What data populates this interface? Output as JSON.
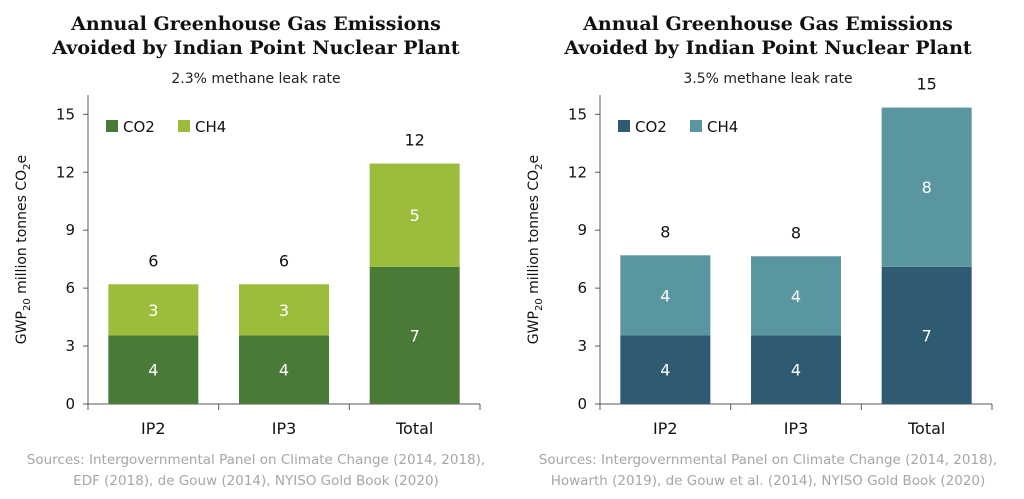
{
  "colors": {
    "left_co2": "#4a7a37",
    "left_ch4": "#9cbd3c",
    "right_co2": "#2e5a72",
    "right_ch4": "#5a96a0",
    "axis": "#595959",
    "sources_text": "#a6a6a6"
  },
  "chart_data": [
    {
      "type": "bar",
      "stacked": true,
      "title_lines": [
        "Annual Greenhouse Gas Emissions",
        "Avoided by Indian Point Nuclear Plant"
      ],
      "subtitle": "2.3% methane leak rate",
      "ylabel": "GWP20 million tonnes CO2e",
      "ylim": [
        0,
        16
      ],
      "yticks": [
        0,
        3,
        6,
        9,
        12,
        15
      ],
      "categories": [
        "IP2",
        "IP3",
        "Total"
      ],
      "series": [
        {
          "name": "CO2",
          "values": [
            3.55,
            3.55,
            7.1
          ],
          "labels": [
            "4",
            "4",
            "7"
          ]
        },
        {
          "name": "CH4",
          "values": [
            2.65,
            2.65,
            5.35
          ],
          "labels": [
            "3",
            "3",
            "5"
          ]
        }
      ],
      "totals": [
        "6",
        "6",
        "12"
      ],
      "legend": "top-left",
      "grid": false,
      "sources": [
        "Sources: Intergovernmental Panel on Climate Change (2014, 2018),",
        "EDF (2018), de Gouw (2014), NYISO Gold Book (2020)"
      ]
    },
    {
      "type": "bar",
      "stacked": true,
      "title_lines": [
        "Annual Greenhouse Gas Emissions",
        "Avoided by Indian Point Nuclear Plant"
      ],
      "subtitle": "3.5% methane leak rate",
      "ylabel": "GWP20 million tonnes CO2e",
      "ylim": [
        0,
        16
      ],
      "yticks": [
        0,
        3,
        6,
        9,
        12,
        15
      ],
      "categories": [
        "IP2",
        "IP3",
        "Total"
      ],
      "series": [
        {
          "name": "CO2",
          "values": [
            3.55,
            3.55,
            7.1
          ],
          "labels": [
            "4",
            "4",
            "7"
          ]
        },
        {
          "name": "CH4",
          "values": [
            4.15,
            4.1,
            8.25
          ],
          "labels": [
            "4",
            "4",
            "8"
          ]
        }
      ],
      "totals": [
        "8",
        "8",
        "15"
      ],
      "legend": "top-left",
      "grid": false,
      "sources": [
        "Sources: Intergovernmental Panel on Climate Change (2014, 2018),",
        "Howarth (2019), de Gouw et al. (2014), NYISO Gold Book (2020)"
      ]
    }
  ]
}
